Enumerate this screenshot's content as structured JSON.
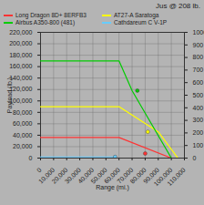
{
  "chart_data": {
    "type": "line",
    "title": "Jus @ 208 lb.",
    "xlabel": "Range (mi.)",
    "ylabel": "Payload (lb.)",
    "xlim": [
      0,
      110000
    ],
    "ylim": [
      0,
      220000
    ],
    "xticks": [
      0,
      {
        "value": 10000,
        "label": "10,000"
      },
      {
        "value": 20000,
        "label": "20,000"
      },
      {
        "value": 30000,
        "label": "30,000"
      },
      {
        "value": 40000,
        "label": "40,000"
      },
      {
        "value": 50000,
        "label": "50,000"
      },
      {
        "value": 60000,
        "label": "60,000"
      },
      {
        "value": 70000,
        "label": "70,000"
      },
      {
        "value": 80000,
        "label": "80,000"
      },
      {
        "value": 90000,
        "label": "90,000"
      },
      {
        "value": 100000,
        "label": "100,000"
      },
      {
        "value": 110000,
        "label": "110,000"
      }
    ],
    "yticks": [
      0,
      {
        "value": 20000,
        "label": "20,000"
      },
      {
        "value": 40000,
        "label": "40,000"
      },
      {
        "value": 60000,
        "label": "60,000"
      },
      {
        "value": 80000,
        "label": "80,000"
      },
      {
        "value": 100000,
        "label": "100,000"
      },
      {
        "value": 120000,
        "label": "120,000"
      },
      {
        "value": 140000,
        "label": "140,000"
      },
      {
        "value": 160000,
        "label": "160,000"
      },
      {
        "value": 180000,
        "label": "180,000"
      },
      {
        "value": 200000,
        "label": "200,000"
      },
      {
        "value": 220000,
        "label": "220,000"
      }
    ],
    "y2lim": [
      0,
      1000
    ],
    "y2ticks": [
      0,
      100,
      200,
      300,
      400,
      500,
      600,
      700,
      800,
      900,
      1000
    ],
    "grid": true,
    "legend": "upper right",
    "series": [
      {
        "name": "Long Dragon 8D+ 8ERFB3",
        "color": "#ff3333",
        "x": [
          0,
          60000,
          100000
        ],
        "values": [
          36000,
          36000,
          0
        ]
      },
      {
        "name": "AT27-A Saratoga",
        "color": "#ffff00",
        "x": [
          0,
          60000,
          90000,
          105000
        ],
        "values": [
          90000,
          90000,
          46000,
          0
        ]
      },
      {
        "name": "Airbus A350-800 (481)",
        "color": "#00cc00",
        "x": [
          0,
          60000,
          70000,
          100000
        ],
        "values": [
          170000,
          170000,
          118000,
          0
        ]
      },
      {
        "name": "Cathdareum C V-1P",
        "color": "#66ccff",
        "x": [
          0,
          55000,
          57000
        ],
        "values": [
          2000,
          2000,
          0
        ]
      }
    ],
    "points": {
      "x": [
        80000,
        82000,
        74000,
        57000
      ],
      "y": [
        8000,
        46000,
        118000,
        2000
      ],
      "colors": [
        "#ff3333",
        "#ffff00",
        "#00cc00",
        "#66ccff"
      ]
    }
  }
}
